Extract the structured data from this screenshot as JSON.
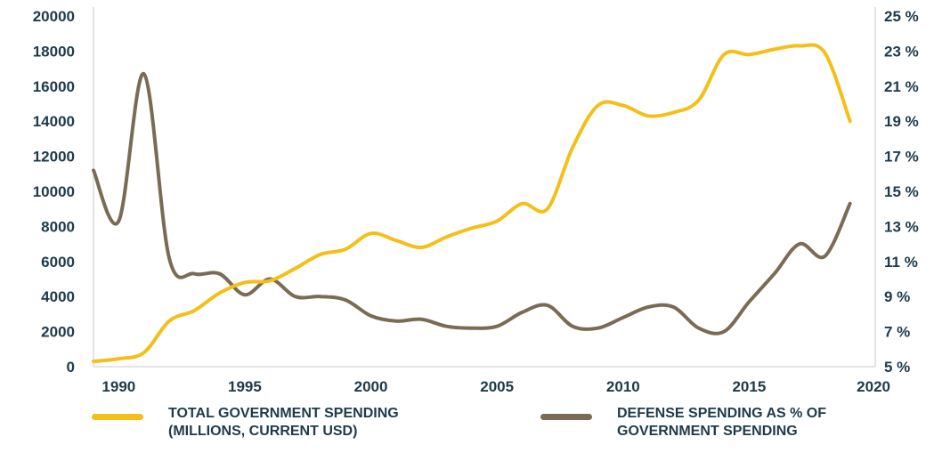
{
  "chart_data": {
    "type": "line",
    "title": "",
    "xlabel": "",
    "ylabel": "",
    "x_ticks": [
      "1990",
      "1995",
      "2000",
      "2005",
      "2010",
      "2015",
      "2020"
    ],
    "xlim": [
      1989,
      2020
    ],
    "y_left": {
      "ylim": [
        0,
        20000
      ],
      "ticks": [
        "0",
        "2000",
        "4000",
        "6000",
        "8000",
        "10000",
        "12000",
        "14000",
        "16000",
        "18000",
        "20000"
      ]
    },
    "y_right": {
      "ylim": [
        5,
        25
      ],
      "ticks": [
        "5 %",
        "7 %",
        "9 %",
        "11 %",
        "13 %",
        "15 %",
        "17 %",
        "19 %",
        "21 %",
        "23 %",
        "25 %"
      ]
    },
    "grid": false,
    "legend_position": "bottom",
    "series": [
      {
        "name": "TOTAL GOVERNMENT SPENDING\n(MILLIONS, CURRENT USD)",
        "axis": "left",
        "color": "#f5bf19",
        "x": [
          1989,
          1990,
          1991,
          1992,
          1993,
          1994,
          1995,
          1996,
          1997,
          1998,
          1999,
          2000,
          2001,
          2002,
          2003,
          2004,
          2005,
          2006,
          2007,
          2008,
          2009,
          2010,
          2011,
          2012,
          2013,
          2014,
          2015,
          2016,
          2017,
          2018,
          2019,
          2020
        ],
        "values": [
          300,
          450,
          800,
          2600,
          3200,
          4200,
          4800,
          4900,
          5600,
          6400,
          6700,
          7600,
          7200,
          6800,
          7400,
          7900,
          8300,
          9300,
          9000,
          12500,
          14900,
          14900,
          14300,
          14500,
          15200,
          17800,
          17800,
          18100,
          18300,
          17900,
          14000,
          null
        ]
      },
      {
        "name": "DEFENSE SPENDING AS % OF\nGOVERNMENT SPENDING",
        "axis": "right",
        "color": "#7a6b55",
        "x": [
          1989,
          1990,
          1991,
          1992,
          1993,
          1994,
          1995,
          1996,
          1997,
          1998,
          1999,
          2000,
          2001,
          2002,
          2003,
          2004,
          2005,
          2006,
          2007,
          2008,
          2009,
          2010,
          2011,
          2012,
          2013,
          2014,
          2015,
          2016,
          2017,
          2018,
          2019,
          2020
        ],
        "values": [
          16.2,
          13.3,
          21.7,
          11.2,
          10.3,
          10.3,
          9.1,
          10.0,
          9.0,
          9.0,
          8.8,
          7.9,
          7.6,
          7.7,
          7.3,
          7.2,
          7.3,
          8.1,
          8.5,
          7.3,
          7.2,
          7.8,
          8.4,
          8.4,
          7.2,
          7.0,
          8.7,
          10.3,
          12.0,
          11.3,
          14.3,
          null
        ]
      }
    ]
  }
}
